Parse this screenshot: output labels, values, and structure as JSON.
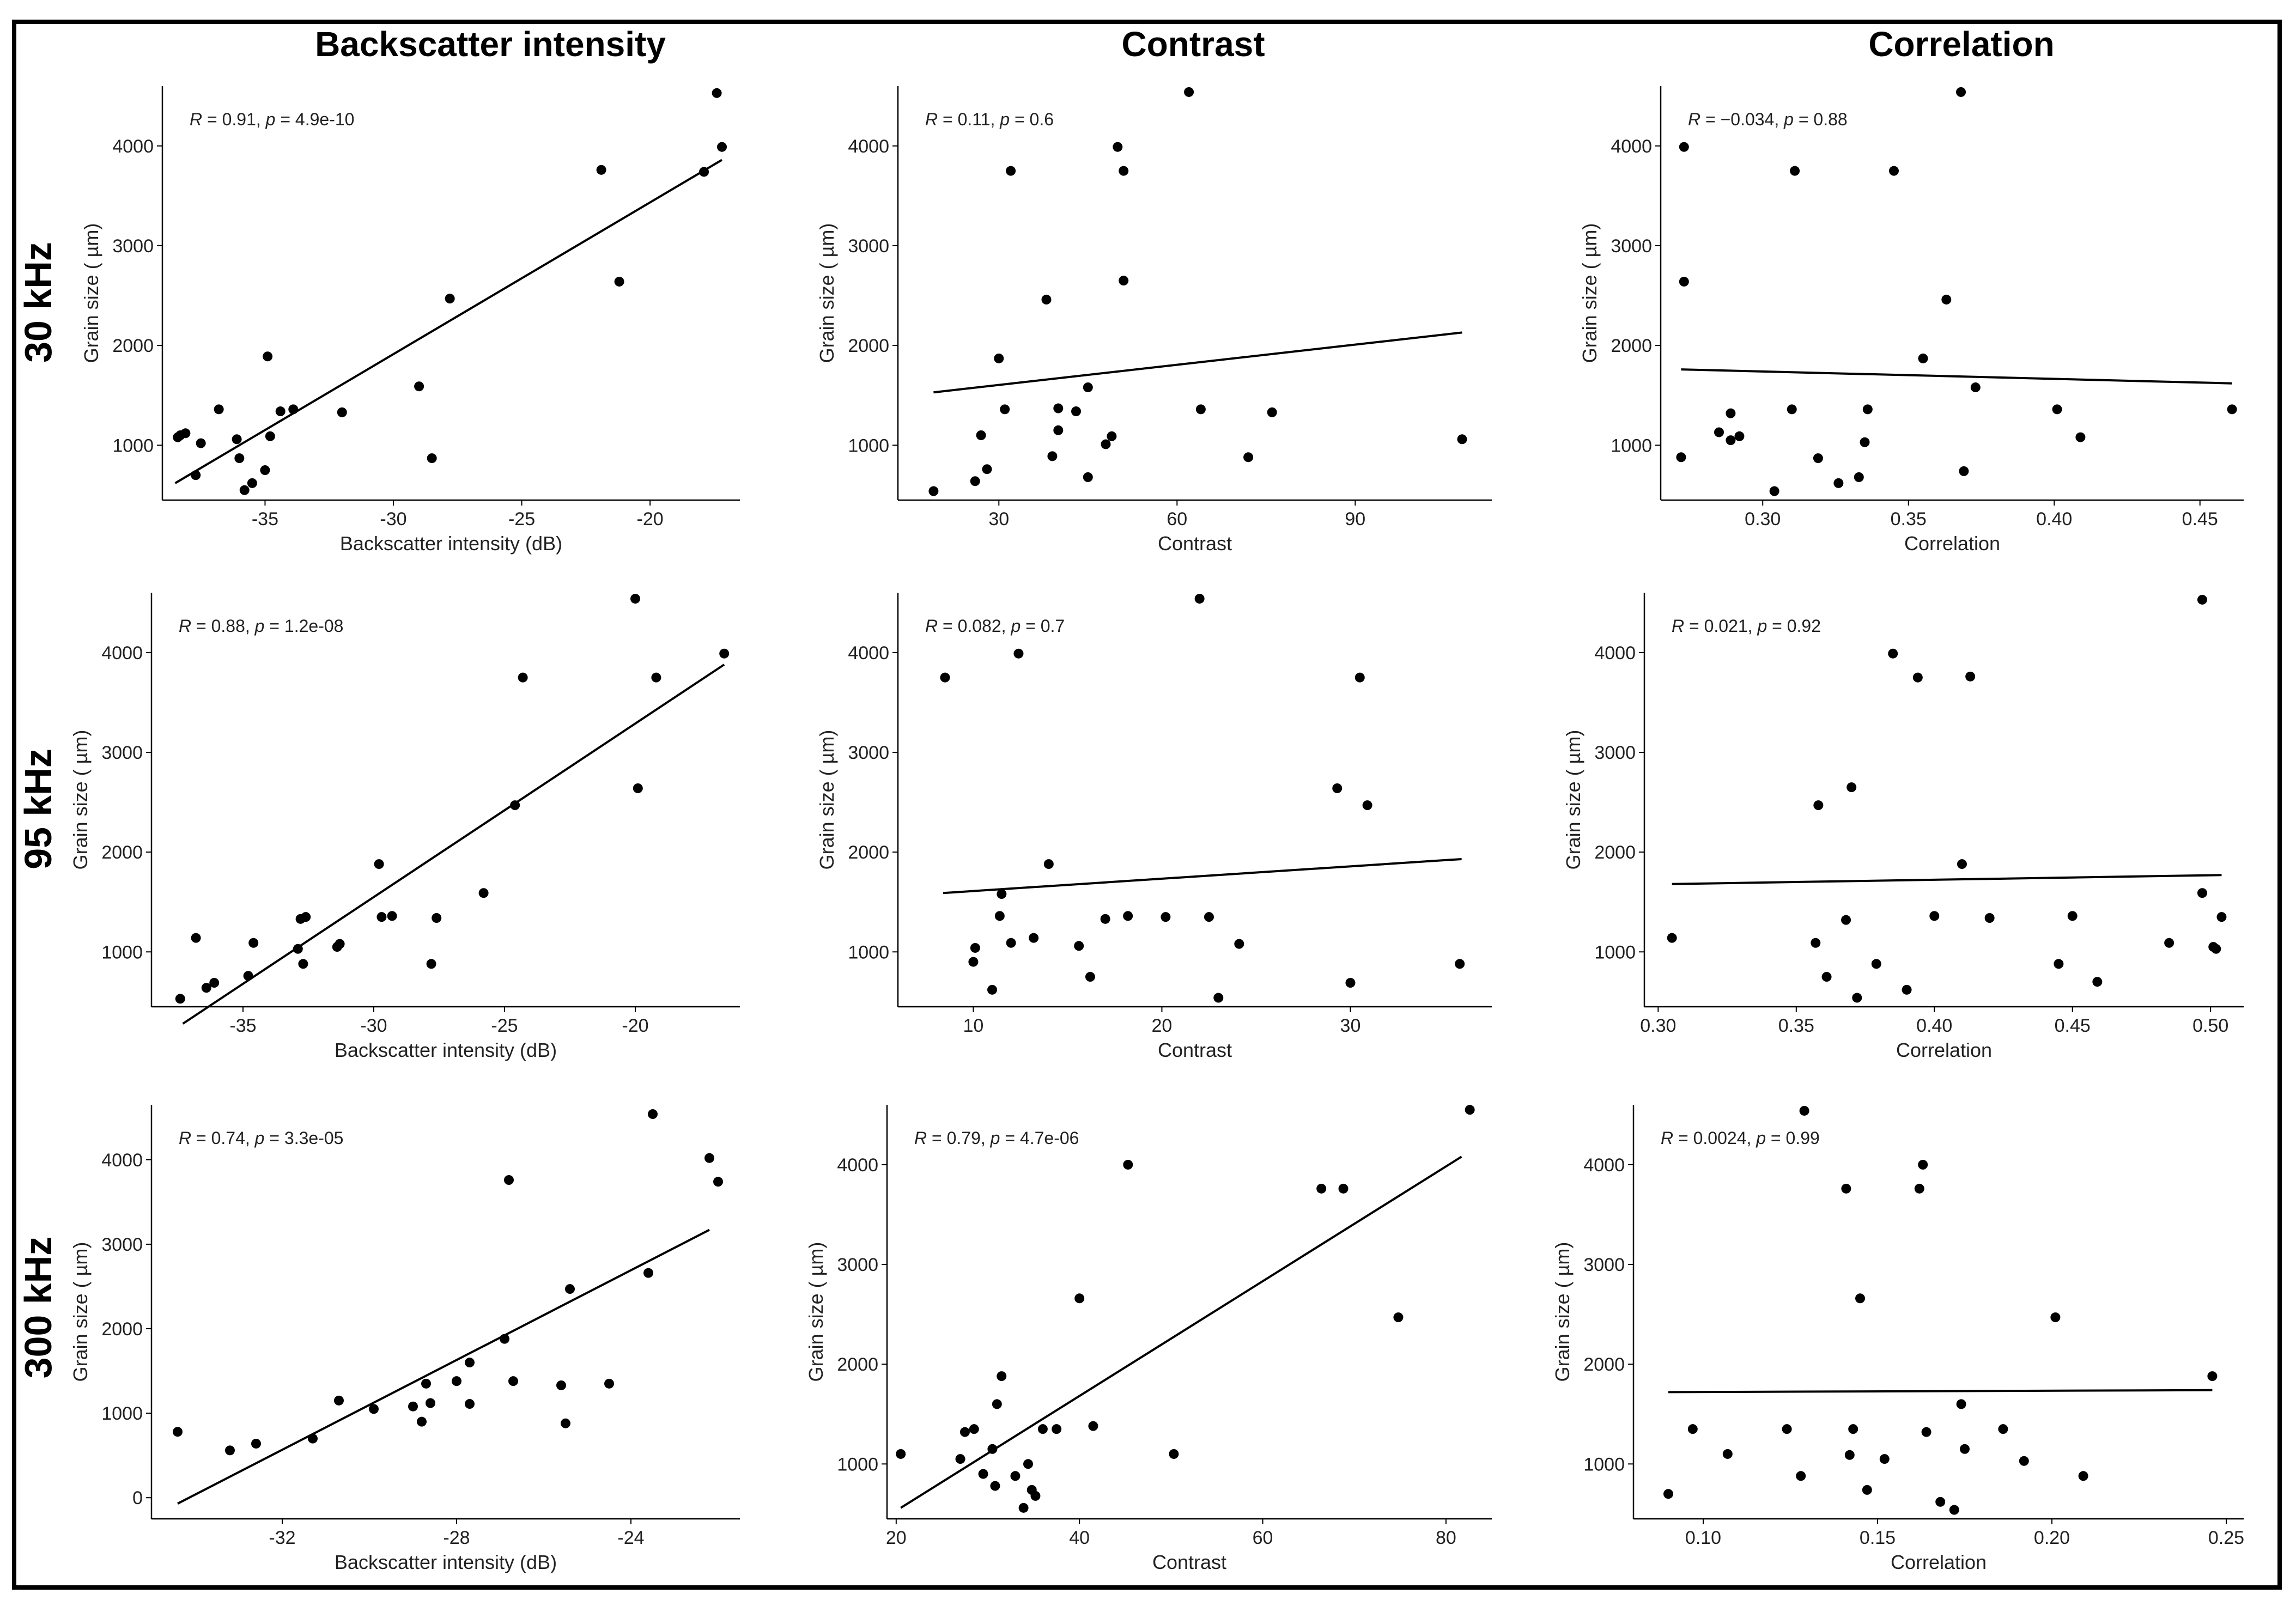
{
  "columns": [
    {
      "title": "Backscatter intensity"
    },
    {
      "title": "Contrast"
    },
    {
      "title": "Correlation"
    }
  ],
  "rows": [
    {
      "label": "30 kHz"
    },
    {
      "label": "95 kHz"
    },
    {
      "label": "300 kHz"
    }
  ],
  "chart_data": [
    {
      "type": "scatter",
      "row": "30 kHz",
      "column": "Backscatter intensity",
      "xlabel": "Backscatter intensity (dB)",
      "ylabel": "Grain size ( µm)",
      "stat": {
        "R": "0.91",
        "p": "4.9e-10"
      },
      "xlim": [
        -39,
        -16.5
      ],
      "ylim": [
        450,
        4600
      ],
      "xticks": [
        -35,
        -30,
        -25,
        -20
      ],
      "yticks": [
        1000,
        2000,
        3000,
        4000
      ],
      "fit": [
        [
          -38.5,
          620
        ],
        [
          -17.2,
          3860
        ]
      ],
      "points": [
        [
          -38.4,
          1080
        ],
        [
          -38.3,
          1100
        ],
        [
          -38.1,
          1120
        ],
        [
          -37.7,
          700
        ],
        [
          -37.5,
          1020
        ],
        [
          -36.8,
          1360
        ],
        [
          -36.1,
          1060
        ],
        [
          -36.0,
          870
        ],
        [
          -35.8,
          550
        ],
        [
          -35.5,
          620
        ],
        [
          -35.0,
          750
        ],
        [
          -34.9,
          1890
        ],
        [
          -34.8,
          1090
        ],
        [
          -34.4,
          1340
        ],
        [
          -33.9,
          1360
        ],
        [
          -32.0,
          1330
        ],
        [
          -29.0,
          1590
        ],
        [
          -28.5,
          870
        ],
        [
          -27.8,
          2470
        ],
        [
          -21.9,
          3760
        ],
        [
          -21.2,
          2640
        ],
        [
          -17.9,
          3740
        ],
        [
          -17.4,
          4530
        ],
        [
          -17.2,
          3990
        ]
      ]
    },
    {
      "type": "scatter",
      "row": "30 kHz",
      "column": "Contrast",
      "xlabel": "Contrast",
      "ylabel": "Grain size ( µm)",
      "stat": {
        "R": "0.11",
        "p": "0.6"
      },
      "xlim": [
        13,
        113
      ],
      "ylim": [
        450,
        4600
      ],
      "xticks": [
        30,
        60,
        90
      ],
      "yticks": [
        1000,
        2000,
        3000,
        4000
      ],
      "fit": [
        [
          19,
          1530
        ],
        [
          108,
          2130
        ]
      ],
      "points": [
        [
          19,
          540
        ],
        [
          26,
          640
        ],
        [
          27,
          1100
        ],
        [
          28,
          760
        ],
        [
          30,
          1870
        ],
        [
          31,
          1360
        ],
        [
          32,
          3750
        ],
        [
          38,
          2460
        ],
        [
          39,
          890
        ],
        [
          40,
          1370
        ],
        [
          40,
          1150
        ],
        [
          43,
          1340
        ],
        [
          45,
          680
        ],
        [
          45,
          1580
        ],
        [
          48,
          1010
        ],
        [
          49,
          1090
        ],
        [
          50,
          3990
        ],
        [
          51,
          3750
        ],
        [
          51,
          2650
        ],
        [
          62,
          4540
        ],
        [
          64,
          1360
        ],
        [
          72,
          880
        ],
        [
          76,
          1330
        ],
        [
          108,
          1060
        ]
      ]
    },
    {
      "type": "scatter",
      "row": "30 kHz",
      "column": "Correlation",
      "xlabel": "Correlation",
      "ylabel": "Grain size ( µm)",
      "stat": {
        "R": "−0.034",
        "p": "0.88"
      },
      "xlim": [
        0.265,
        0.465
      ],
      "ylim": [
        450,
        4600
      ],
      "xticks": [
        0.3,
        0.35,
        0.4,
        0.45
      ],
      "yticks": [
        1000,
        2000,
        3000,
        4000
      ],
      "fit": [
        [
          0.272,
          1760
        ],
        [
          0.461,
          1620
        ]
      ],
      "points": [
        [
          0.272,
          880
        ],
        [
          0.273,
          3990
        ],
        [
          0.273,
          2640
        ],
        [
          0.285,
          1130
        ],
        [
          0.289,
          1050
        ],
        [
          0.289,
          1320
        ],
        [
          0.292,
          1090
        ],
        [
          0.304,
          540
        ],
        [
          0.31,
          1360
        ],
        [
          0.311,
          3750
        ],
        [
          0.319,
          870
        ],
        [
          0.326,
          620
        ],
        [
          0.333,
          680
        ],
        [
          0.335,
          1030
        ],
        [
          0.336,
          1360
        ],
        [
          0.345,
          3750
        ],
        [
          0.355,
          1870
        ],
        [
          0.363,
          2460
        ],
        [
          0.368,
          4540
        ],
        [
          0.369,
          740
        ],
        [
          0.373,
          1580
        ],
        [
          0.401,
          1360
        ],
        [
          0.409,
          1080
        ],
        [
          0.461,
          1360
        ]
      ]
    },
    {
      "type": "scatter",
      "row": "95 kHz",
      "column": "Backscatter intensity",
      "xlabel": "Backscatter intensity (dB)",
      "ylabel": "Grain size ( µm)",
      "stat": {
        "R": "0.88",
        "p": "1.2e-08"
      },
      "xlim": [
        -38.5,
        -16
      ],
      "ylim": [
        450,
        4600
      ],
      "xticks": [
        -35,
        -30,
        -25,
        -20
      ],
      "yticks": [
        1000,
        2000,
        3000,
        4000
      ],
      "fit": [
        [
          -37.3,
          280
        ],
        [
          -16.6,
          3880
        ]
      ],
      "points": [
        [
          -37.4,
          530
        ],
        [
          -36.8,
          1140
        ],
        [
          -36.4,
          640
        ],
        [
          -36.1,
          690
        ],
        [
          -34.8,
          760
        ],
        [
          -34.6,
          1090
        ],
        [
          -32.9,
          1030
        ],
        [
          -32.8,
          1330
        ],
        [
          -32.7,
          880
        ],
        [
          -32.6,
          1350
        ],
        [
          -31.4,
          1050
        ],
        [
          -31.3,
          1080
        ],
        [
          -29.8,
          1880
        ],
        [
          -29.7,
          1350
        ],
        [
          -29.3,
          1360
        ],
        [
          -27.8,
          880
        ],
        [
          -27.6,
          1340
        ],
        [
          -25.8,
          1590
        ],
        [
          -24.6,
          2470
        ],
        [
          -24.3,
          3750
        ],
        [
          -20.0,
          4540
        ],
        [
          -19.9,
          2640
        ],
        [
          -19.2,
          3750
        ],
        [
          -16.6,
          3990
        ]
      ]
    },
    {
      "type": "scatter",
      "row": "95 kHz",
      "column": "Contrast",
      "xlabel": "Contrast",
      "ylabel": "Grain size ( µm)",
      "stat": {
        "R": "0.082",
        "p": "0.7"
      },
      "xlim": [
        6,
        37.5
      ],
      "ylim": [
        450,
        4600
      ],
      "xticks": [
        10,
        20,
        30
      ],
      "yticks": [
        1000,
        2000,
        3000,
        4000
      ],
      "fit": [
        [
          8.4,
          1590
        ],
        [
          35.9,
          1930
        ]
      ],
      "points": [
        [
          8.5,
          3750
        ],
        [
          10.0,
          900
        ],
        [
          10.1,
          1040
        ],
        [
          11.0,
          620
        ],
        [
          11.4,
          1360
        ],
        [
          11.5,
          1580
        ],
        [
          12.0,
          1090
        ],
        [
          12.4,
          3990
        ],
        [
          13.2,
          1140
        ],
        [
          14.0,
          1880
        ],
        [
          15.6,
          1060
        ],
        [
          16.2,
          750
        ],
        [
          17.0,
          1330
        ],
        [
          18.2,
          1360
        ],
        [
          20.2,
          1350
        ],
        [
          22.0,
          4540
        ],
        [
          22.5,
          1350
        ],
        [
          23.0,
          540
        ],
        [
          24.1,
          1080
        ],
        [
          29.3,
          2640
        ],
        [
          30.0,
          690
        ],
        [
          30.5,
          3750
        ],
        [
          30.9,
          2470
        ],
        [
          35.8,
          880
        ]
      ]
    },
    {
      "type": "scatter",
      "row": "95 kHz",
      "column": "Correlation",
      "xlabel": "Correlation",
      "ylabel": "Grain size ( µm)",
      "stat": {
        "R": "0.021",
        "p": "0.92"
      },
      "xlim": [
        0.295,
        0.512
      ],
      "ylim": [
        450,
        4600
      ],
      "xticks": [
        0.3,
        0.35,
        0.4,
        0.45,
        0.5
      ],
      "yticks": [
        1000,
        2000,
        3000,
        4000
      ],
      "fit": [
        [
          0.305,
          1680
        ],
        [
          0.504,
          1770
        ]
      ],
      "points": [
        [
          0.305,
          1140
        ],
        [
          0.357,
          1090
        ],
        [
          0.358,
          2470
        ],
        [
          0.361,
          750
        ],
        [
          0.368,
          1320
        ],
        [
          0.37,
          2650
        ],
        [
          0.372,
          540
        ],
        [
          0.379,
          880
        ],
        [
          0.385,
          3990
        ],
        [
          0.39,
          620
        ],
        [
          0.394,
          3750
        ],
        [
          0.4,
          1360
        ],
        [
          0.41,
          1880
        ],
        [
          0.413,
          3760
        ],
        [
          0.42,
          1340
        ],
        [
          0.445,
          880
        ],
        [
          0.45,
          1360
        ],
        [
          0.459,
          700
        ],
        [
          0.485,
          1090
        ],
        [
          0.497,
          4530
        ],
        [
          0.497,
          1590
        ],
        [
          0.501,
          1050
        ],
        [
          0.502,
          1030
        ],
        [
          0.504,
          1350
        ]
      ]
    },
    {
      "type": "scatter",
      "row": "300 kHz",
      "column": "Backscatter intensity",
      "xlabel": "Backscatter intensity (dB)",
      "ylabel": "Grain size ( µm)",
      "stat": {
        "R": "0.74",
        "p": "3.3e-05"
      },
      "xlim": [
        -35,
        -21.5
      ],
      "ylim": [
        -250,
        4650
      ],
      "xticks": [
        -32,
        -28,
        -24
      ],
      "yticks": [
        0,
        1000,
        2000,
        3000,
        4000
      ],
      "fit": [
        [
          -34.4,
          -70
        ],
        [
          -22.2,
          3170
        ]
      ],
      "points": [
        [
          -34.4,
          780
        ],
        [
          -33.2,
          560
        ],
        [
          -32.6,
          640
        ],
        [
          -31.3,
          700
        ],
        [
          -30.7,
          1150
        ],
        [
          -29.9,
          1050
        ],
        [
          -29.0,
          1080
        ],
        [
          -28.8,
          900
        ],
        [
          -28.7,
          1350
        ],
        [
          -28.6,
          1120
        ],
        [
          -28.0,
          1380
        ],
        [
          -27.7,
          1110
        ],
        [
          -27.7,
          1600
        ],
        [
          -26.9,
          1880
        ],
        [
          -26.8,
          3760
        ],
        [
          -26.7,
          1380
        ],
        [
          -25.6,
          1330
        ],
        [
          -25.5,
          880
        ],
        [
          -25.4,
          2470
        ],
        [
          -24.5,
          1350
        ],
        [
          -23.6,
          2660
        ],
        [
          -23.5,
          4540
        ],
        [
          -22.2,
          4020
        ],
        [
          -22.0,
          3740
        ]
      ]
    },
    {
      "type": "scatter",
      "row": "300 kHz",
      "column": "Contrast",
      "xlabel": "Contrast",
      "ylabel": "Grain size ( µm)",
      "stat": {
        "R": "0.79",
        "p": "4.7e-06"
      },
      "xlim": [
        19,
        85
      ],
      "ylim": [
        450,
        4600
      ],
      "xticks": [
        20,
        40,
        60,
        80
      ],
      "yticks": [
        1000,
        2000,
        3000,
        4000
      ],
      "fit": [
        [
          20.5,
          560
        ],
        [
          81.7,
          4080
        ]
      ],
      "points": [
        [
          20.5,
          1100
        ],
        [
          27.0,
          1050
        ],
        [
          27.5,
          1320
        ],
        [
          28.5,
          1350
        ],
        [
          29.5,
          900
        ],
        [
          30.5,
          1150
        ],
        [
          30.8,
          780
        ],
        [
          31.0,
          1600
        ],
        [
          31.5,
          1880
        ],
        [
          33.0,
          880
        ],
        [
          33.9,
          560
        ],
        [
          34.4,
          1000
        ],
        [
          34.8,
          740
        ],
        [
          35.2,
          680
        ],
        [
          36.0,
          1350
        ],
        [
          37.5,
          1350
        ],
        [
          40.0,
          2660
        ],
        [
          41.5,
          1380
        ],
        [
          45.3,
          4000
        ],
        [
          50.3,
          1100
        ],
        [
          66.4,
          3760
        ],
        [
          68.8,
          3760
        ],
        [
          74.8,
          2470
        ],
        [
          82.6,
          4550
        ]
      ]
    },
    {
      "type": "scatter",
      "row": "300 kHz",
      "column": "Correlation",
      "xlabel": "Correlation",
      "ylabel": "Grain size ( µm)",
      "stat": {
        "R": "0.0024",
        "p": "0.99"
      },
      "xlim": [
        0.08,
        0.255
      ],
      "ylim": [
        450,
        4600
      ],
      "xticks": [
        0.1,
        0.15,
        0.2,
        0.25
      ],
      "yticks": [
        1000,
        2000,
        3000,
        4000
      ],
      "fit": [
        [
          0.09,
          1720
        ],
        [
          0.246,
          1740
        ]
      ],
      "points": [
        [
          0.09,
          700
        ],
        [
          0.097,
          1350
        ],
        [
          0.107,
          1100
        ],
        [
          0.124,
          1350
        ],
        [
          0.128,
          880
        ],
        [
          0.129,
          4540
        ],
        [
          0.141,
          3760
        ],
        [
          0.142,
          1090
        ],
        [
          0.143,
          1350
        ],
        [
          0.145,
          2660
        ],
        [
          0.147,
          740
        ],
        [
          0.152,
          1050
        ],
        [
          0.162,
          3760
        ],
        [
          0.163,
          4000
        ],
        [
          0.164,
          1320
        ],
        [
          0.168,
          620
        ],
        [
          0.172,
          540
        ],
        [
          0.174,
          1600
        ],
        [
          0.175,
          1150
        ],
        [
          0.186,
          1350
        ],
        [
          0.192,
          1030
        ],
        [
          0.201,
          2470
        ],
        [
          0.209,
          880
        ],
        [
          0.246,
          1880
        ]
      ]
    }
  ]
}
